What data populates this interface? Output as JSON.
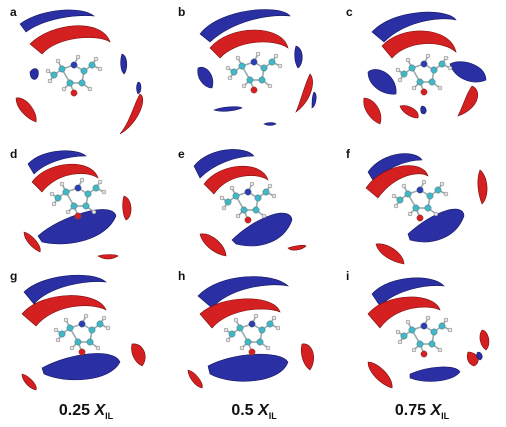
{
  "panels": [
    {
      "label": "a"
    },
    {
      "label": "b"
    },
    {
      "label": "c"
    },
    {
      "label": "d"
    },
    {
      "label": "e"
    },
    {
      "label": "f"
    },
    {
      "label": "g"
    },
    {
      "label": "h"
    },
    {
      "label": "i"
    }
  ],
  "columns": [
    {
      "value": "0.25",
      "var": "X",
      "sub": "IL"
    },
    {
      "value": "0.5",
      "var": "X",
      "sub": "IL"
    },
    {
      "value": "0.75",
      "var": "X",
      "sub": "IL"
    }
  ],
  "colors": {
    "red_lobe": "#d42020",
    "blue_lobe": "#2a2fa3",
    "carbon": "#3fb8c8",
    "nitrogen": "#2b3fb5",
    "oxygen": "#d81e1e",
    "hydrogen": "#e6e6e6"
  }
}
